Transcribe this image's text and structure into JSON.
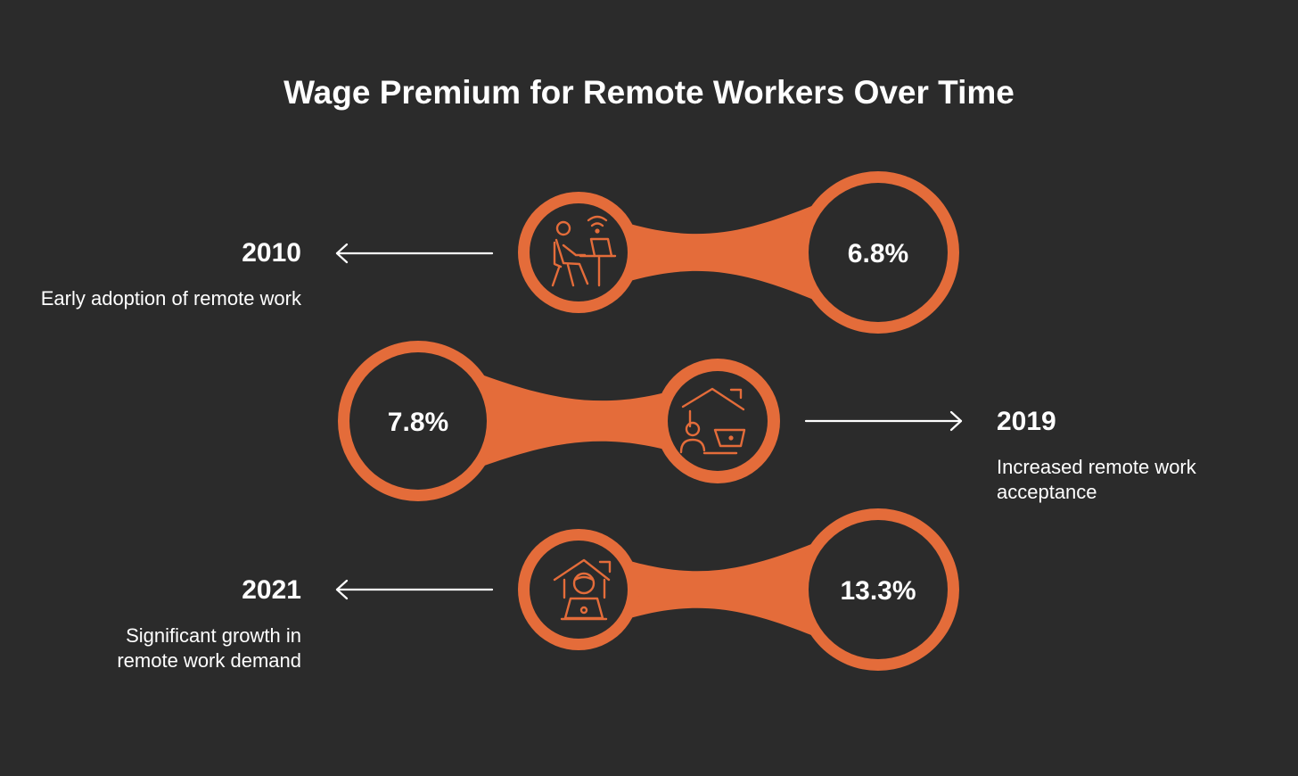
{
  "title": "Wage Premium for Remote Workers Over Time",
  "colors": {
    "background": "#2b2b2b",
    "accent": "#e46c3a",
    "text": "#ffffff"
  },
  "milestones": [
    {
      "year": "2010",
      "description": "Early adoption of remote work",
      "premium": "6.8%",
      "icon": "person-at-desk-laptop-wifi-icon"
    },
    {
      "year": "2019",
      "description": "Increased remote work acceptance",
      "premium": "7.8%",
      "icon": "house-person-laptop-icon"
    },
    {
      "year": "2021",
      "description": "Significant growth in remote work demand",
      "premium": "13.3%",
      "icon": "person-in-house-laptop-icon"
    }
  ]
}
